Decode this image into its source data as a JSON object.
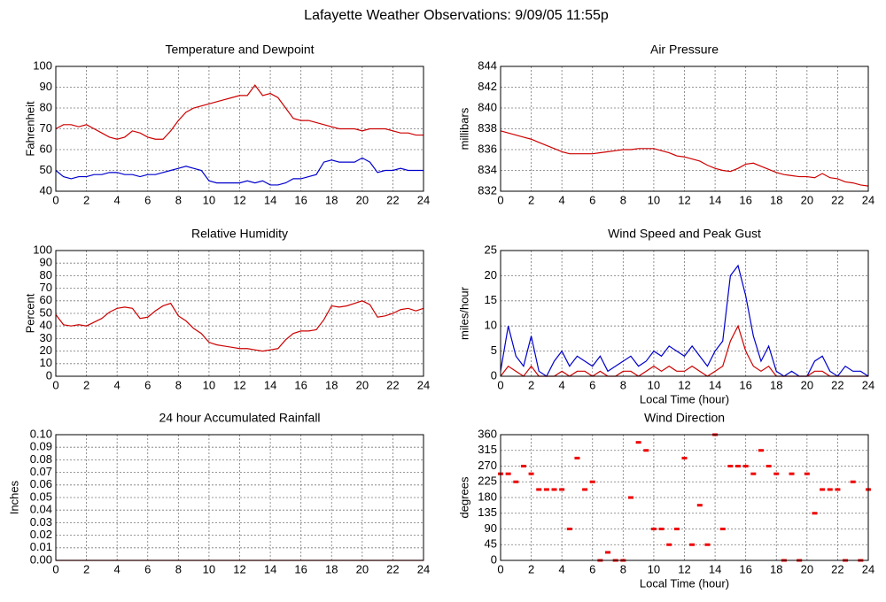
{
  "title": "Lafayette Weather Observations: 9/09/05 11:55p",
  "chart_data": [
    {
      "type": "line",
      "title": "Temperature and Dewpoint",
      "y_label": "Fahrenheit",
      "x": [
        0,
        0.5,
        1,
        1.5,
        2,
        2.5,
        3,
        3.5,
        4,
        4.5,
        5,
        5.5,
        6,
        6.5,
        7,
        7.5,
        8,
        8.5,
        9,
        9.5,
        10,
        10.5,
        11,
        11.5,
        12,
        12.5,
        13,
        13.5,
        14,
        14.5,
        15,
        15.5,
        16,
        16.5,
        17,
        17.5,
        18,
        18.5,
        19,
        19.5,
        20,
        20.5,
        21,
        21.5,
        22,
        22.5,
        23,
        23.5,
        24
      ],
      "series": [
        {
          "color": "#cc0000",
          "values": [
            70,
            72,
            72,
            71,
            72,
            70,
            68,
            66,
            65,
            66,
            69,
            68,
            66,
            65,
            65,
            69,
            74,
            78,
            80,
            81,
            82,
            83,
            84,
            85,
            86,
            86,
            91,
            86,
            87,
            85,
            80,
            75,
            74,
            74,
            73,
            72,
            71,
            70,
            70,
            70,
            69,
            70,
            70,
            70,
            69,
            68,
            68,
            67,
            67
          ]
        },
        {
          "color": "#0000cc",
          "values": [
            50,
            47,
            46,
            47,
            47,
            48,
            48,
            49,
            49,
            48,
            48,
            47,
            48,
            48,
            49,
            50,
            51,
            52,
            51,
            50,
            45,
            44,
            44,
            44,
            44,
            45,
            44,
            45,
            43,
            43,
            44,
            46,
            46,
            47,
            48,
            54,
            55,
            54,
            54,
            54,
            56,
            54,
            49,
            50,
            50,
            51,
            50,
            50,
            50
          ]
        }
      ],
      "xlim": [
        0,
        24
      ],
      "xticks": [
        0,
        2,
        4,
        6,
        8,
        10,
        12,
        14,
        16,
        18,
        20,
        22,
        24
      ],
      "ylim": [
        40,
        100
      ],
      "yticks": [
        40,
        50,
        60,
        70,
        80,
        90,
        100
      ],
      "grid": true
    },
    {
      "type": "line",
      "title": "Air Pressure",
      "y_label": "millibars",
      "x": [
        0,
        0.5,
        1,
        1.5,
        2,
        2.5,
        3,
        3.5,
        4,
        4.5,
        5,
        5.5,
        6,
        6.5,
        7,
        7.5,
        8,
        8.5,
        9,
        9.5,
        10,
        10.5,
        11,
        11.5,
        12,
        12.5,
        13,
        13.5,
        14,
        14.5,
        15,
        15.5,
        16,
        16.5,
        17,
        17.5,
        18,
        18.5,
        19,
        19.5,
        20,
        20.5,
        21,
        21.5,
        22,
        22.5,
        23,
        23.5,
        24
      ],
      "series": [
        {
          "color": "#cc0000",
          "values": [
            837.8,
            837.6,
            837.4,
            837.2,
            837.0,
            836.7,
            836.4,
            836.1,
            835.8,
            835.6,
            835.6,
            835.6,
            835.6,
            835.7,
            835.8,
            835.9,
            836.0,
            836.0,
            836.1,
            836.1,
            836.1,
            835.9,
            835.7,
            835.4,
            835.3,
            835.1,
            834.9,
            834.5,
            834.2,
            834.0,
            833.9,
            834.2,
            834.6,
            834.7,
            834.4,
            834.1,
            833.8,
            833.6,
            833.5,
            833.4,
            833.4,
            833.3,
            833.7,
            833.3,
            833.2,
            832.9,
            832.8,
            832.6,
            832.5
          ]
        }
      ],
      "xlim": [
        0,
        24
      ],
      "xticks": [
        0,
        2,
        4,
        6,
        8,
        10,
        12,
        14,
        16,
        18,
        20,
        22,
        24
      ],
      "ylim": [
        832,
        844
      ],
      "yticks": [
        832,
        834,
        836,
        838,
        840,
        842,
        844
      ],
      "grid": true
    },
    {
      "type": "line",
      "title": "Relative Humidity",
      "y_label": "Percent",
      "x": [
        0,
        0.5,
        1,
        1.5,
        2,
        2.5,
        3,
        3.5,
        4,
        4.5,
        5,
        5.5,
        6,
        6.5,
        7,
        7.5,
        8,
        8.5,
        9,
        9.5,
        10,
        10.5,
        11,
        11.5,
        12,
        12.5,
        13,
        13.5,
        14,
        14.5,
        15,
        15.5,
        16,
        16.5,
        17,
        17.5,
        18,
        18.5,
        19,
        19.5,
        20,
        20.5,
        21,
        21.5,
        22,
        22.5,
        23,
        23.5,
        24
      ],
      "series": [
        {
          "color": "#cc0000",
          "values": [
            49,
            41,
            40,
            41,
            40,
            43,
            46,
            51,
            54,
            55,
            54,
            46,
            47,
            52,
            56,
            58,
            48,
            44,
            38,
            34,
            27,
            25,
            24,
            23,
            22,
            22,
            21,
            20,
            21,
            22,
            29,
            34,
            36,
            36,
            37,
            45,
            56,
            55,
            56,
            58,
            60,
            57,
            47,
            48,
            50,
            53,
            54,
            52,
            54
          ]
        }
      ],
      "xlim": [
        0,
        24
      ],
      "xticks": [
        0,
        2,
        4,
        6,
        8,
        10,
        12,
        14,
        16,
        18,
        20,
        22,
        24
      ],
      "ylim": [
        0,
        100
      ],
      "yticks": [
        0,
        10,
        20,
        30,
        40,
        50,
        60,
        70,
        80,
        90,
        100
      ],
      "grid": true
    },
    {
      "type": "line",
      "title": "Wind Speed and Peak Gust",
      "y_label": "miles/hour",
      "x_label": "Local Time (hour)",
      "x": [
        0,
        0.5,
        1,
        1.5,
        2,
        2.5,
        3,
        3.5,
        4,
        4.5,
        5,
        5.5,
        6,
        6.5,
        7,
        7.5,
        8,
        8.5,
        9,
        9.5,
        10,
        10.5,
        11,
        11.5,
        12,
        12.5,
        13,
        13.5,
        14,
        14.5,
        15,
        15.5,
        16,
        16.5,
        17,
        17.5,
        18,
        18.5,
        19,
        19.5,
        20,
        20.5,
        21,
        21.5,
        22,
        22.5,
        23,
        23.5,
        24
      ],
      "series": [
        {
          "color": "#0000cc",
          "values": [
            1,
            10,
            4,
            2,
            8,
            1,
            0,
            3,
            5,
            2,
            4,
            3,
            2,
            4,
            1,
            2,
            3,
            4,
            2,
            3,
            5,
            4,
            6,
            5,
            4,
            6,
            4,
            2,
            5,
            7,
            20,
            22,
            16,
            8,
            3,
            6,
            1,
            0,
            1,
            0,
            0,
            3,
            4,
            1,
            0,
            2,
            1,
            1,
            0
          ]
        },
        {
          "color": "#cc0000",
          "values": [
            0,
            2,
            1,
            0,
            2,
            0,
            0,
            0,
            1,
            0,
            1,
            1,
            0,
            1,
            0,
            0,
            1,
            1,
            0,
            1,
            2,
            1,
            2,
            1,
            1,
            2,
            1,
            0,
            1,
            2,
            7,
            10,
            5,
            2,
            1,
            2,
            0,
            0,
            0,
            0,
            0,
            1,
            1,
            0,
            0,
            0,
            0,
            0,
            0
          ]
        }
      ],
      "xlim": [
        0,
        24
      ],
      "xticks": [
        0,
        2,
        4,
        6,
        8,
        10,
        12,
        14,
        16,
        18,
        20,
        22,
        24
      ],
      "ylim": [
        0,
        25
      ],
      "yticks": [
        0,
        5,
        10,
        15,
        20,
        25
      ],
      "grid": true
    },
    {
      "type": "line",
      "title": "24 hour Accumulated Rainfall",
      "y_label": "Inches",
      "x": [
        0,
        24
      ],
      "series": [
        {
          "color": "#cc0000",
          "values": [
            0,
            0
          ]
        }
      ],
      "xlim": [
        0,
        24
      ],
      "xticks": [
        0,
        2,
        4,
        6,
        8,
        10,
        12,
        14,
        16,
        18,
        20,
        22,
        24
      ],
      "ylim": [
        0,
        0.1
      ],
      "yticks": [
        {
          "value": 0,
          "label": "0.00"
        },
        {
          "value": 0.01,
          "label": "0.01"
        },
        {
          "value": 0.02,
          "label": "0.02"
        },
        {
          "value": 0.03,
          "label": "0.03"
        },
        {
          "value": 0.04,
          "label": "0.04"
        },
        {
          "value": 0.05,
          "label": "0.05"
        },
        {
          "value": 0.06,
          "label": "0.06"
        },
        {
          "value": 0.07,
          "label": "0.07"
        },
        {
          "value": 0.08,
          "label": "0.08"
        },
        {
          "value": 0.09,
          "label": "0.09"
        },
        {
          "value": 0.1,
          "label": "0.10"
        }
      ],
      "grid": true
    },
    {
      "type": "scatter",
      "title": "Wind Direction",
      "y_label": "degrees",
      "x_label": "Local Time (hour)",
      "x": [
        0,
        0.5,
        1,
        1.5,
        2,
        2.5,
        3,
        3.5,
        4,
        4.5,
        5,
        5.5,
        6,
        6.5,
        7,
        7.5,
        8,
        8.5,
        9,
        9.5,
        10,
        10.5,
        11,
        11.5,
        12,
        12.5,
        13,
        13.5,
        14,
        14.5,
        15,
        15.5,
        16,
        16.5,
        17,
        17.5,
        18,
        18.5,
        19,
        19.5,
        20,
        20.5,
        21,
        21.5,
        22,
        22.5,
        23,
        23.5,
        24
      ],
      "series": [
        {
          "color": "#ee0000",
          "values": [
            248,
            248,
            225,
            270,
            248,
            203,
            203,
            203,
            203,
            90,
            293,
            203,
            225,
            0,
            23,
            0,
            0,
            180,
            338,
            315,
            90,
            90,
            45,
            90,
            293,
            45,
            158,
            45,
            360,
            90,
            270,
            270,
            270,
            248,
            315,
            270,
            248,
            0,
            248,
            0,
            248,
            135,
            203,
            203,
            203,
            0,
            225,
            0,
            203
          ]
        }
      ],
      "xlim": [
        0,
        24
      ],
      "xticks": [
        0,
        2,
        4,
        6,
        8,
        10,
        12,
        14,
        16,
        18,
        20,
        22,
        24
      ],
      "ylim": [
        0,
        360
      ],
      "yticks": [
        0,
        45,
        90,
        135,
        180,
        225,
        270,
        315,
        360
      ],
      "grid": true
    }
  ]
}
